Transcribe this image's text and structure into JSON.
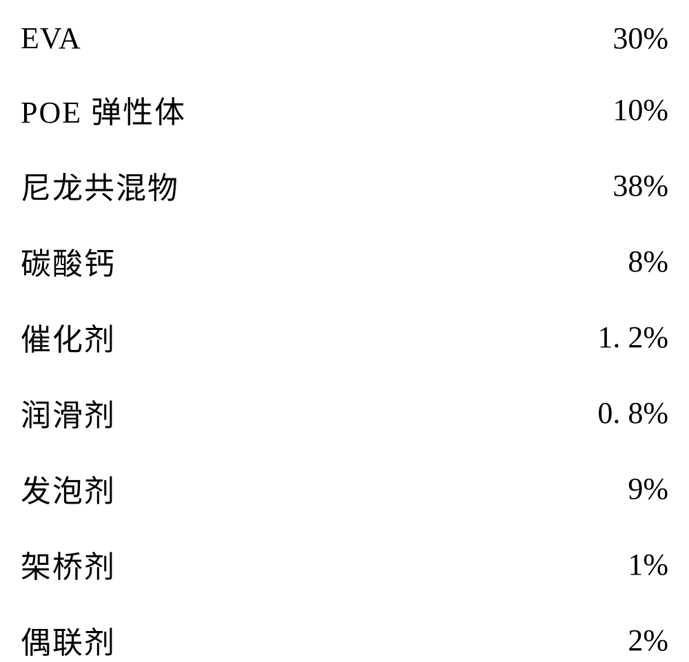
{
  "rows": [
    {
      "label": "EVA",
      "value": "30%",
      "latin": true
    },
    {
      "label": "POE 弹性体",
      "value": "10%",
      "latin": false
    },
    {
      "label": "尼龙共混物",
      "value": "38%",
      "latin": false
    },
    {
      "label": "碳酸钙",
      "value": "8%",
      "latin": false
    },
    {
      "label": "催化剂",
      "value": "1. 2%",
      "latin": false
    },
    {
      "label": "润滑剂",
      "value": "0. 8%",
      "latin": false
    },
    {
      "label": "发泡剂",
      "value": "9%",
      "latin": false
    },
    {
      "label": "架桥剂",
      "value": "1%",
      "latin": false
    },
    {
      "label": "偶联剂",
      "value": "2%",
      "latin": false
    }
  ],
  "styling": {
    "background_color": "#ffffff",
    "text_color": "#000000",
    "font_size": 44,
    "row_spacing": 46,
    "font_family_cn": "KaiTi",
    "font_family_latin": "Times New Roman"
  }
}
